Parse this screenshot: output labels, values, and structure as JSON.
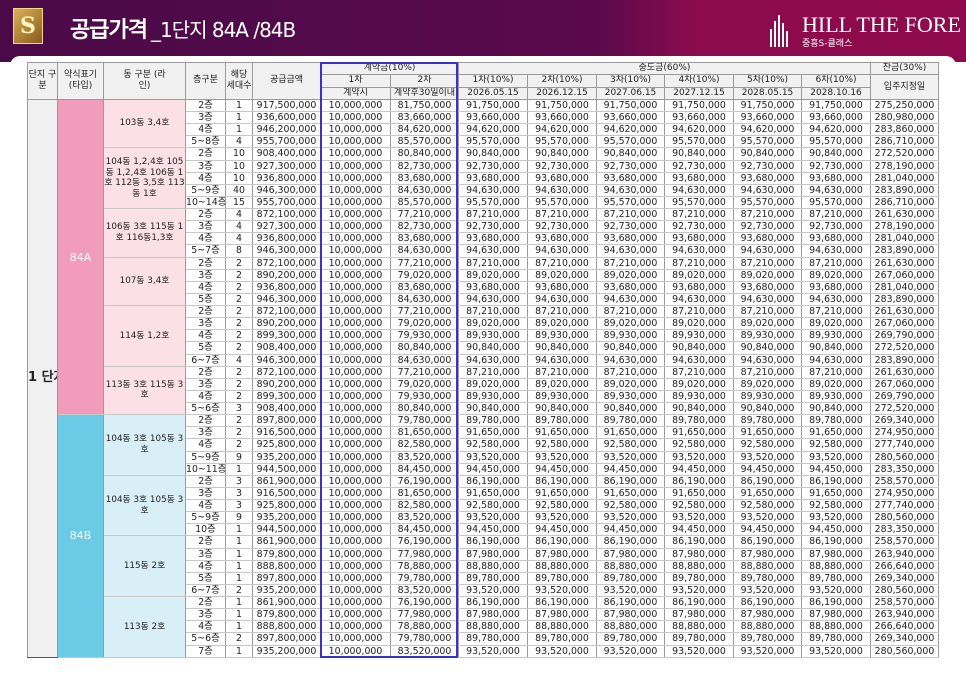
{
  "header": {
    "title": "공급가격",
    "subtitle": "_1단지 84A /84B",
    "logo_text": "S",
    "brand_name": "HILL THE FORE",
    "brand_sub": "중흥S-클래스"
  },
  "colors": {
    "bar_left": "#4a0a47",
    "bar_right": "#8e0a4c",
    "type_84A": "#f29cbb",
    "type_84B": "#6bcbe6",
    "group_84A": "#fbe0e8",
    "group_84B": "#d8eff7",
    "contract_highlight": "#3a2fd0"
  },
  "table": {
    "headers": {
      "danji": "단지 구분",
      "type": "약식표기 (타입)",
      "dong": "동 구분 (라인)",
      "floor": "층구분",
      "units": "해당 세대수",
      "price": "공급금액",
      "contract": "계약금(10%)",
      "middle": "중도금(60%)",
      "balance": "잔금(30%)",
      "c1": "1차",
      "c2": "2차",
      "m": [
        "1차(10%)",
        "2차(10%)",
        "3차(10%)",
        "4차(10%)",
        "5차(10%)",
        "6차(10%)"
      ],
      "move_in": "입주지정일",
      "c1_when": "계약시",
      "c2_when": "계약후30일이내",
      "m_dates": [
        "2026.05.15",
        "2026.12.15",
        "2027.06.15",
        "2027.12.15",
        "2028.05.15",
        "2028.10.16"
      ]
    },
    "danji": "1 단지",
    "contract1": "10,000,000",
    "types": [
      {
        "type": "84A",
        "groups": [
          {
            "dong": "103동 3,4호",
            "rows": [
              [
                "2층",
                "1",
                "917,500,000",
                "81,750,000",
                "91,750,000",
                "275,250,000"
              ],
              [
                "3층",
                "1",
                "936,600,000",
                "83,660,000",
                "93,660,000",
                "280,980,000"
              ],
              [
                "4층",
                "1",
                "946,200,000",
                "84,620,000",
                "94,620,000",
                "283,860,000"
              ],
              [
                "5~8층",
                "4",
                "955,700,000",
                "85,570,000",
                "95,570,000",
                "286,710,000"
              ]
            ]
          },
          {
            "dong": "104동 1,2,4호 105동 1,2,4호 106동 1호 112동 3,5호 113동 1호",
            "rows": [
              [
                "2층",
                "10",
                "908,400,000",
                "80,840,000",
                "90,840,000",
                "272,520,000"
              ],
              [
                "3층",
                "10",
                "927,300,000",
                "82,730,000",
                "92,730,000",
                "278,190,000"
              ],
              [
                "4층",
                "10",
                "936,800,000",
                "83,680,000",
                "93,680,000",
                "281,040,000"
              ],
              [
                "5~9층",
                "40",
                "946,300,000",
                "84,630,000",
                "94,630,000",
                "283,890,000"
              ],
              [
                "10~14층",
                "15",
                "955,700,000",
                "85,570,000",
                "95,570,000",
                "286,710,000"
              ]
            ]
          },
          {
            "dong": "106동 3호 115동 1호 116동1,3호",
            "rows": [
              [
                "2층",
                "4",
                "872,100,000",
                "77,210,000",
                "87,210,000",
                "261,630,000"
              ],
              [
                "3층",
                "4",
                "927,300,000",
                "82,730,000",
                "92,730,000",
                "278,190,000"
              ],
              [
                "4층",
                "4",
                "936,800,000",
                "83,680,000",
                "93,680,000",
                "281,040,000"
              ],
              [
                "5~7층",
                "8",
                "946,300,000",
                "84,630,000",
                "94,630,000",
                "283,890,000"
              ]
            ]
          },
          {
            "dong": "107동 3,4호",
            "rows": [
              [
                "2층",
                "2",
                "872,100,000",
                "77,210,000",
                "87,210,000",
                "261,630,000"
              ],
              [
                "3층",
                "2",
                "890,200,000",
                "79,020,000",
                "89,020,000",
                "267,060,000"
              ],
              [
                "4층",
                "2",
                "936,800,000",
                "83,680,000",
                "93,680,000",
                "281,040,000"
              ],
              [
                "5층",
                "2",
                "946,300,000",
                "84,630,000",
                "94,630,000",
                "283,890,000"
              ]
            ]
          },
          {
            "dong": "114동 1,2호",
            "rows": [
              [
                "2층",
                "2",
                "872,100,000",
                "77,210,000",
                "87,210,000",
                "261,630,000"
              ],
              [
                "3층",
                "2",
                "890,200,000",
                "79,020,000",
                "89,020,000",
                "267,060,000"
              ],
              [
                "4층",
                "2",
                "899,300,000",
                "79,930,000",
                "89,930,000",
                "269,790,000"
              ],
              [
                "5층",
                "2",
                "908,400,000",
                "80,840,000",
                "90,840,000",
                "272,520,000"
              ],
              [
                "6~7층",
                "4",
                "946,300,000",
                "84,630,000",
                "94,630,000",
                "283,890,000"
              ]
            ]
          },
          {
            "dong": "113동 3호 115동 3호",
            "rows": [
              [
                "2층",
                "2",
                "872,100,000",
                "77,210,000",
                "87,210,000",
                "261,630,000"
              ],
              [
                "3층",
                "2",
                "890,200,000",
                "79,020,000",
                "89,020,000",
                "267,060,000"
              ],
              [
                "4층",
                "2",
                "899,300,000",
                "79,930,000",
                "89,930,000",
                "269,790,000"
              ],
              [
                "5~6층",
                "3",
                "908,400,000",
                "80,840,000",
                "90,840,000",
                "272,520,000"
              ]
            ]
          }
        ]
      },
      {
        "type": "84B",
        "groups": [
          {
            "dong": "104동 3호 105동 3호",
            "rows": [
              [
                "2층",
                "2",
                "897,800,000",
                "79,780,000",
                "89,780,000",
                "269,340,000"
              ],
              [
                "3층",
                "2",
                "916,500,000",
                "81,650,000",
                "91,650,000",
                "274,950,000"
              ],
              [
                "4층",
                "2",
                "925,800,000",
                "82,580,000",
                "92,580,000",
                "277,740,000"
              ],
              [
                "5~9층",
                "9",
                "935,200,000",
                "83,520,000",
                "93,520,000",
                "280,560,000"
              ],
              [
                "10~11층",
                "1",
                "944,500,000",
                "84,450,000",
                "94,450,000",
                "283,350,000"
              ]
            ]
          },
          {
            "dong": "104동 3호 105동 3호",
            "rows": [
              [
                "2층",
                "3",
                "861,900,000",
                "76,190,000",
                "86,190,000",
                "258,570,000"
              ],
              [
                "3층",
                "3",
                "916,500,000",
                "81,650,000",
                "91,650,000",
                "274,950,000"
              ],
              [
                "4층",
                "3",
                "925,800,000",
                "82,580,000",
                "92,580,000",
                "277,740,000"
              ],
              [
                "5~9층",
                "9",
                "935,200,000",
                "83,520,000",
                "93,520,000",
                "280,560,000"
              ],
              [
                "10층",
                "1",
                "944,500,000",
                "84,450,000",
                "94,450,000",
                "283,350,000"
              ]
            ]
          },
          {
            "dong": "115동 2호",
            "rows": [
              [
                "2층",
                "1",
                "861,900,000",
                "76,190,000",
                "86,190,000",
                "258,570,000"
              ],
              [
                "3층",
                "1",
                "879,800,000",
                "77,980,000",
                "87,980,000",
                "263,940,000"
              ],
              [
                "4층",
                "1",
                "888,800,000",
                "78,880,000",
                "88,880,000",
                "266,640,000"
              ],
              [
                "5층",
                "1",
                "897,800,000",
                "79,780,000",
                "89,780,000",
                "269,340,000"
              ],
              [
                "6~7층",
                "2",
                "935,200,000",
                "83,520,000",
                "93,520,000",
                "280,560,000"
              ]
            ]
          },
          {
            "dong": "113동 2호",
            "rows": [
              [
                "2층",
                "1",
                "861,900,000",
                "76,190,000",
                "86,190,000",
                "258,570,000"
              ],
              [
                "3층",
                "1",
                "879,800,000",
                "77,980,000",
                "87,980,000",
                "263,940,000"
              ],
              [
                "4층",
                "1",
                "888,800,000",
                "78,880,000",
                "88,880,000",
                "266,640,000"
              ],
              [
                "5~6층",
                "2",
                "897,800,000",
                "79,780,000",
                "89,780,000",
                "269,340,000"
              ],
              [
                "7층",
                "1",
                "935,200,000",
                "83,520,000",
                "93,520,000",
                "280,560,000"
              ]
            ]
          }
        ]
      }
    ]
  }
}
